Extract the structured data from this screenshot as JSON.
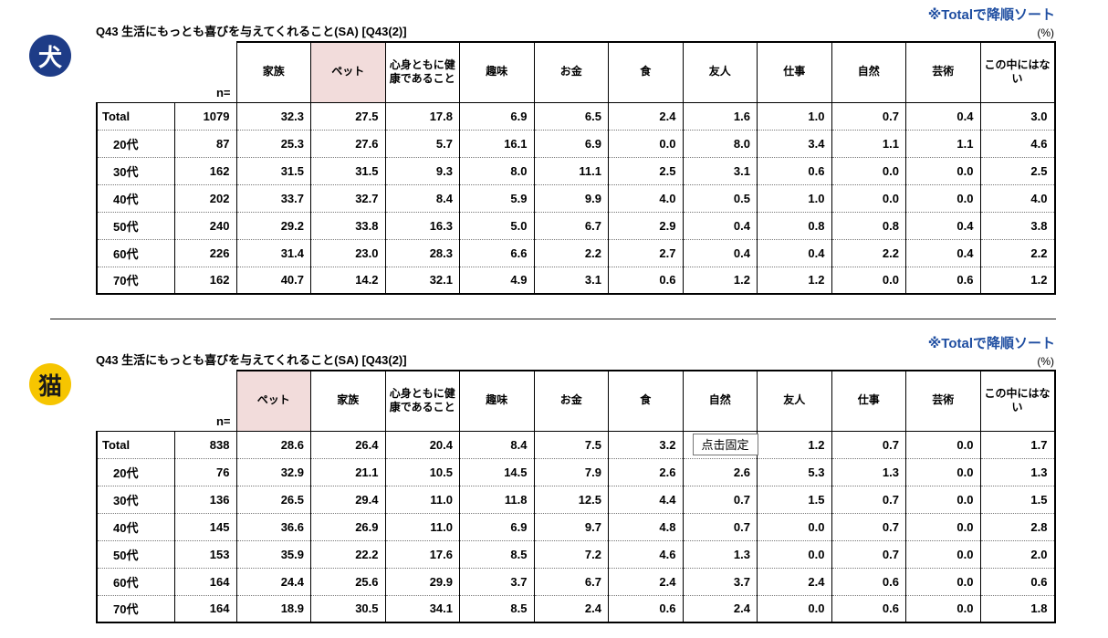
{
  "colors": {
    "dog_badge": "#1e3c87",
    "cat_badge": "#f6c500",
    "sort_note": "#1f4ea1",
    "highlight_bg": "#f2dcdb"
  },
  "tooltip": {
    "text": "点击固定",
    "table_index": 1,
    "row_index": 0,
    "col_index": 6
  },
  "tables": [
    {
      "badge": "犬",
      "sort_note": "※Totalで降順ソート",
      "title": "Q43 生活にもっとも喜びを与えてくれること(SA) [Q43(2)]",
      "percent_label": "(%)",
      "n_label": "n=",
      "highlight_col_index": 1,
      "columns": [
        "家族",
        "ペット",
        "心身ともに健康であること",
        "趣味",
        "お金",
        "食",
        "友人",
        "仕事",
        "自然",
        "芸術",
        "この中にはない"
      ],
      "rows": [
        {
          "label": "Total",
          "n": "1079",
          "values": [
            "32.3",
            "27.5",
            "17.8",
            "6.9",
            "6.5",
            "2.4",
            "1.6",
            "1.0",
            "0.7",
            "0.4",
            "3.0"
          ]
        },
        {
          "label": "20代",
          "n": "87",
          "values": [
            "25.3",
            "27.6",
            "5.7",
            "16.1",
            "6.9",
            "0.0",
            "8.0",
            "3.4",
            "1.1",
            "1.1",
            "4.6"
          ]
        },
        {
          "label": "30代",
          "n": "162",
          "values": [
            "31.5",
            "31.5",
            "9.3",
            "8.0",
            "11.1",
            "2.5",
            "3.1",
            "0.6",
            "0.0",
            "0.0",
            "2.5"
          ]
        },
        {
          "label": "40代",
          "n": "202",
          "values": [
            "33.7",
            "32.7",
            "8.4",
            "5.9",
            "9.9",
            "4.0",
            "0.5",
            "1.0",
            "0.0",
            "0.0",
            "4.0"
          ]
        },
        {
          "label": "50代",
          "n": "240",
          "values": [
            "29.2",
            "33.8",
            "16.3",
            "5.0",
            "6.7",
            "2.9",
            "0.4",
            "0.8",
            "0.8",
            "0.4",
            "3.8"
          ]
        },
        {
          "label": "60代",
          "n": "226",
          "values": [
            "31.4",
            "23.0",
            "28.3",
            "6.6",
            "2.2",
            "2.7",
            "0.4",
            "0.4",
            "2.2",
            "0.4",
            "2.2"
          ]
        },
        {
          "label": "70代",
          "n": "162",
          "values": [
            "40.7",
            "14.2",
            "32.1",
            "4.9",
            "3.1",
            "0.6",
            "1.2",
            "1.2",
            "0.0",
            "0.6",
            "1.2"
          ]
        }
      ]
    },
    {
      "badge": "猫",
      "sort_note": "※Totalで降順ソート",
      "title": "Q43 生活にもっとも喜びを与えてくれること(SA) [Q43(2)]",
      "percent_label": "(%)",
      "n_label": "n=",
      "highlight_col_index": 0,
      "columns": [
        "ペット",
        "家族",
        "心身ともに健康であること",
        "趣味",
        "お金",
        "食",
        "自然",
        "友人",
        "仕事",
        "芸術",
        "この中にはない"
      ],
      "rows": [
        {
          "label": "Total",
          "n": "838",
          "values": [
            "28.6",
            "26.4",
            "20.4",
            "8.4",
            "7.5",
            "3.2",
            "",
            "1.2",
            "0.7",
            "0.0",
            "1.7"
          ]
        },
        {
          "label": "20代",
          "n": "76",
          "values": [
            "32.9",
            "21.1",
            "10.5",
            "14.5",
            "7.9",
            "2.6",
            "2.6",
            "5.3",
            "1.3",
            "0.0",
            "1.3"
          ]
        },
        {
          "label": "30代",
          "n": "136",
          "values": [
            "26.5",
            "29.4",
            "11.0",
            "11.8",
            "12.5",
            "4.4",
            "0.7",
            "1.5",
            "0.7",
            "0.0",
            "1.5"
          ]
        },
        {
          "label": "40代",
          "n": "145",
          "values": [
            "36.6",
            "26.9",
            "11.0",
            "6.9",
            "9.7",
            "4.8",
            "0.7",
            "0.0",
            "0.7",
            "0.0",
            "2.8"
          ]
        },
        {
          "label": "50代",
          "n": "153",
          "values": [
            "35.9",
            "22.2",
            "17.6",
            "8.5",
            "7.2",
            "4.6",
            "1.3",
            "0.0",
            "0.7",
            "0.0",
            "2.0"
          ]
        },
        {
          "label": "60代",
          "n": "164",
          "values": [
            "24.4",
            "25.6",
            "29.9",
            "3.7",
            "6.7",
            "2.4",
            "3.7",
            "2.4",
            "0.6",
            "0.0",
            "0.6"
          ]
        },
        {
          "label": "70代",
          "n": "164",
          "values": [
            "18.9",
            "30.5",
            "34.1",
            "8.5",
            "2.4",
            "0.6",
            "2.4",
            "0.0",
            "0.6",
            "0.0",
            "1.8"
          ]
        }
      ]
    }
  ]
}
